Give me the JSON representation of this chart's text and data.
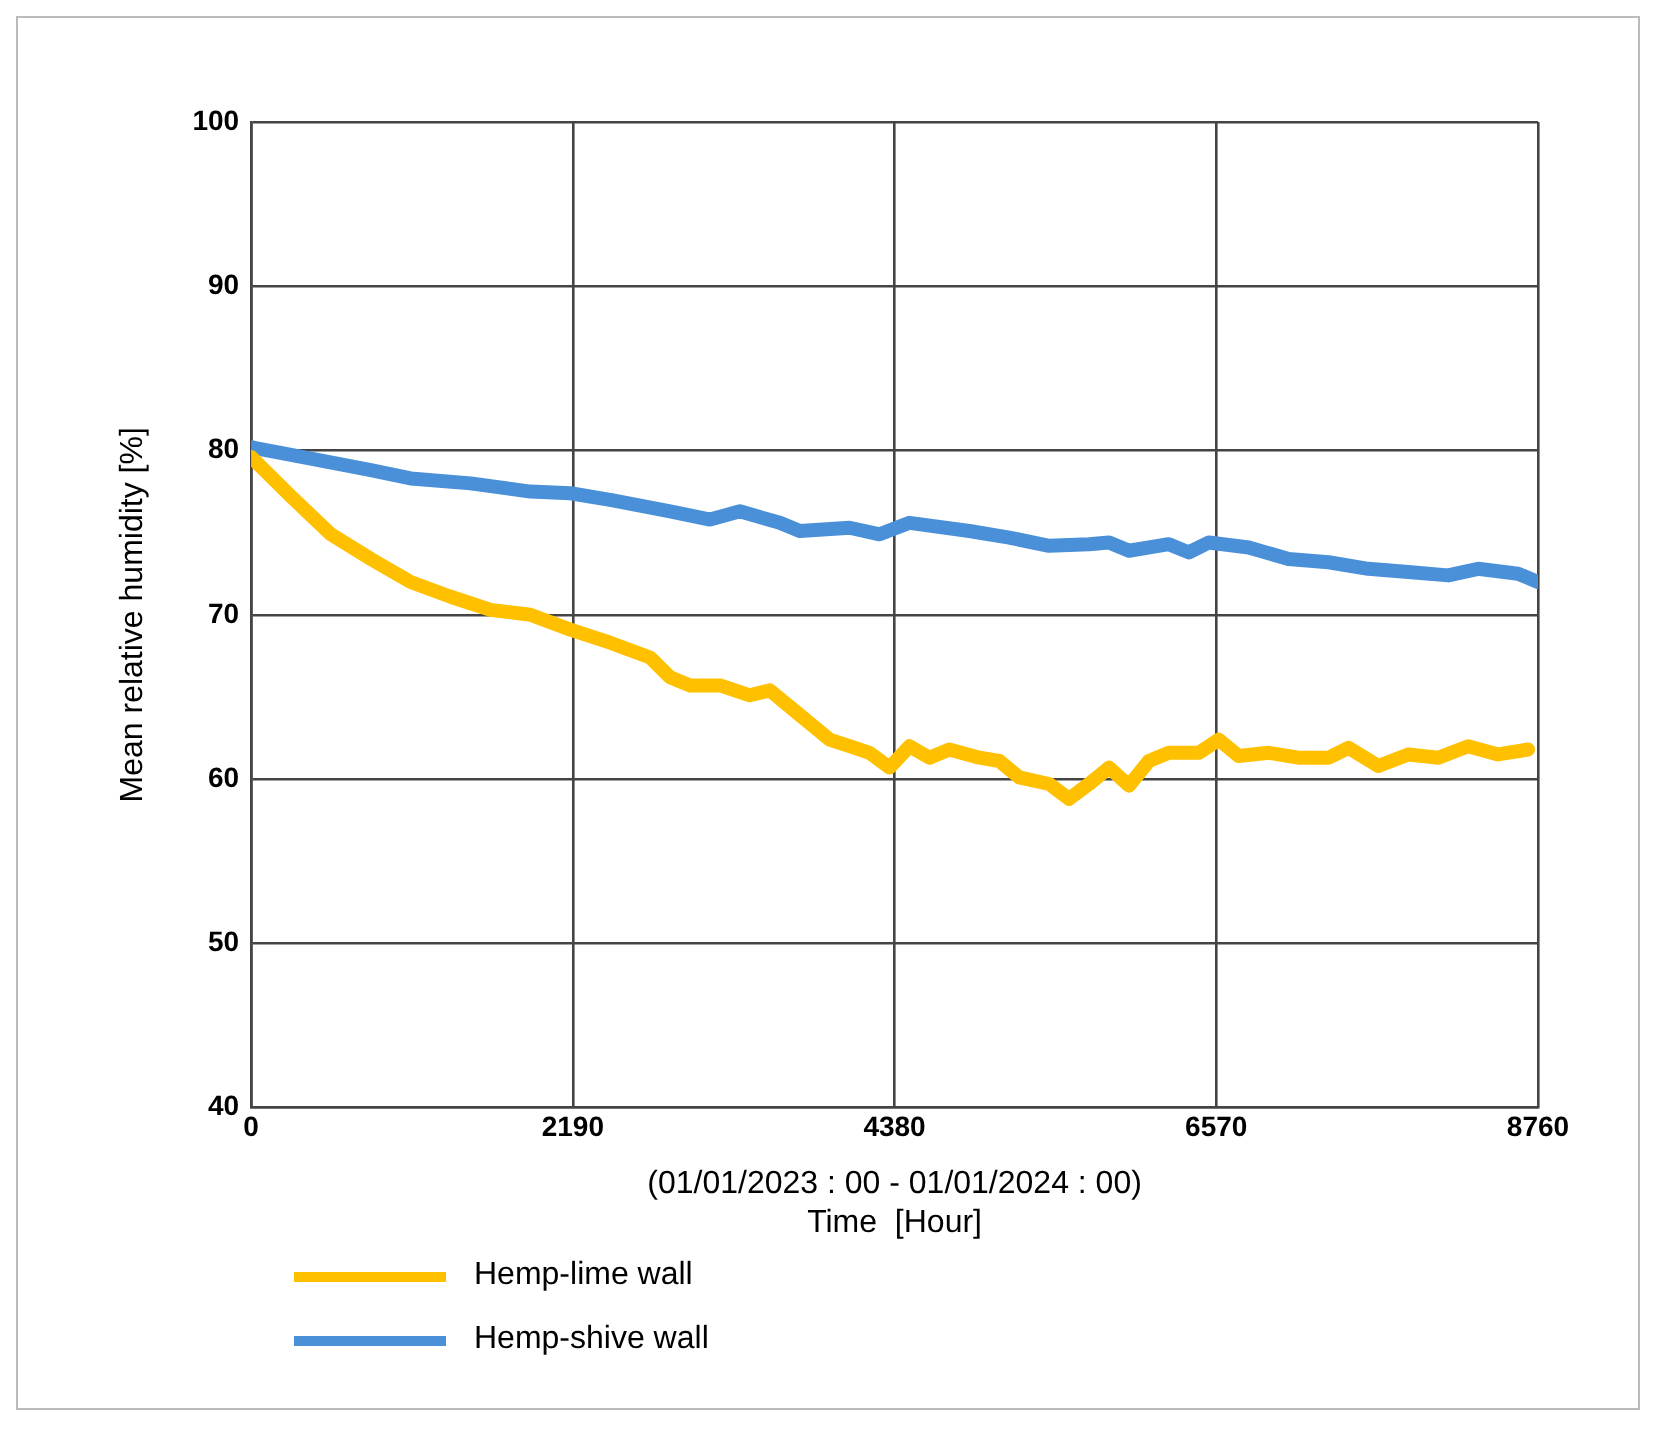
{
  "chart_data": {
    "type": "line",
    "xlabel": "(01/01/2023 : 00 - 01/01/2024 : 00)\nTime  [Hour]",
    "ylabel": "Mean relative humidity [%]",
    "xlim": [
      0,
      8760
    ],
    "xticks": [
      0,
      2190,
      4380,
      6570,
      8760
    ],
    "ylim": [
      40,
      100
    ],
    "yticks": [
      40,
      50,
      60,
      70,
      80,
      90,
      100
    ],
    "grid": true,
    "legend": "bottom left",
    "marker": "none",
    "line_style": "solid",
    "series": [
      {
        "name": "Hemp-lime wall",
        "color": "#ffc000",
        "x": [
          0,
          272,
          543,
          815,
          1086,
          1358,
          1630,
          1901,
          2173,
          2444,
          2716,
          2852,
          2988,
          3192,
          3395,
          3531,
          3735,
          3938,
          4074,
          4210,
          4346,
          4482,
          4618,
          4753,
          4957,
          5093,
          5229,
          5432,
          5568,
          5704,
          5840,
          5976,
          6111,
          6247,
          6451,
          6587,
          6723,
          6926,
          7130,
          7334,
          7470,
          7673,
          7877,
          8081,
          8285,
          8488,
          8692
        ],
        "values": [
          79.6,
          77.2,
          74.9,
          73.4,
          72.0,
          71.1,
          70.3,
          70.0,
          69.1,
          68.3,
          67.4,
          66.2,
          65.7,
          65.7,
          65.1,
          65.4,
          63.9,
          62.4,
          62.0,
          61.6,
          60.7,
          62.0,
          61.3,
          61.8,
          61.3,
          61.1,
          60.1,
          59.7,
          58.8,
          59.7,
          60.7,
          59.6,
          61.1,
          61.6,
          61.6,
          62.4,
          61.4,
          61.6,
          61.3,
          61.3,
          61.9,
          60.8,
          61.5,
          61.3,
          62.0,
          61.5,
          61.8
        ]
      },
      {
        "name": "Hemp-shive wall",
        "color": "#4a90d9",
        "x": [
          0,
          407,
          815,
          1086,
          1494,
          1901,
          2173,
          2444,
          2852,
          3124,
          3327,
          3599,
          3735,
          4074,
          4278,
          4482,
          4889,
          5161,
          5432,
          5704,
          5840,
          5976,
          6247,
          6383,
          6519,
          6791,
          7062,
          7334,
          7605,
          7877,
          8149,
          8352,
          8624,
          8760
        ],
        "values": [
          80.2,
          79.5,
          78.8,
          78.3,
          78.0,
          77.5,
          77.4,
          77.0,
          76.3,
          75.8,
          76.3,
          75.6,
          75.1,
          75.3,
          74.9,
          75.6,
          75.1,
          74.7,
          74.2,
          74.3,
          74.4,
          73.9,
          74.3,
          73.8,
          74.4,
          74.1,
          73.4,
          73.2,
          72.8,
          72.6,
          72.4,
          72.8,
          72.5,
          72.0
        ]
      }
    ]
  }
}
